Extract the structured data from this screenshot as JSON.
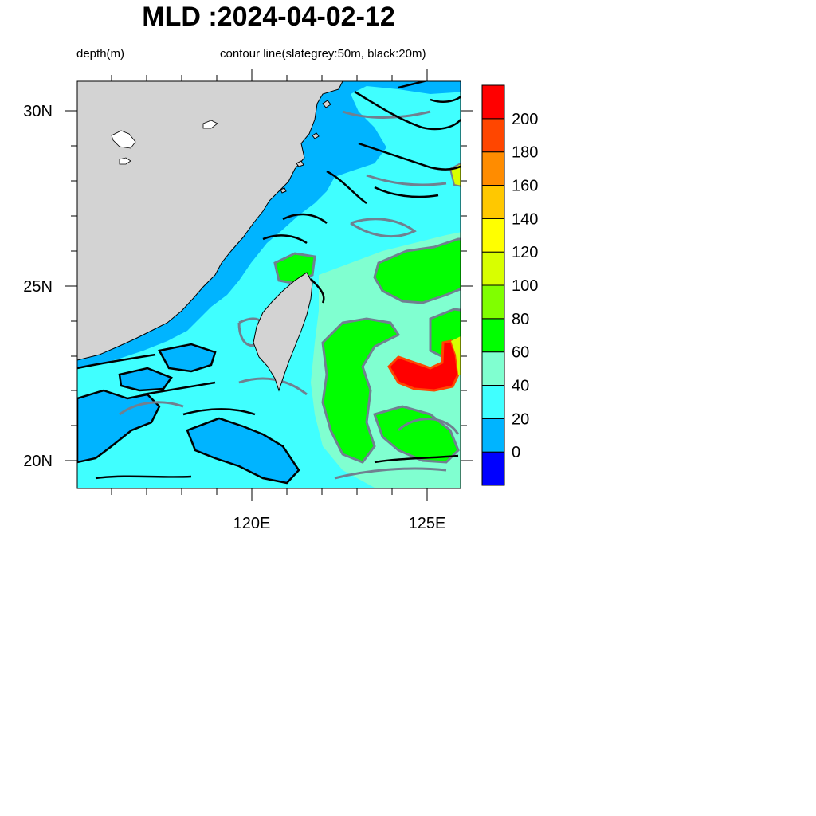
{
  "figure": {
    "title": "MLD :2024-04-02-12",
    "left_string": "depth(m)",
    "right_string": "contour line(slategrey:50m, black:20m)"
  },
  "map": {
    "lon_range": [
      115,
      126
    ],
    "lat_range": [
      19.2,
      30.9
    ],
    "lat_labels": [
      {
        "value": 30,
        "text": "30N"
      },
      {
        "value": 25,
        "text": "25N"
      },
      {
        "value": 20,
        "text": "20N"
      }
    ],
    "lon_labels": [
      {
        "value": 120,
        "text": "120E"
      },
      {
        "value": 125,
        "text": "125E"
      }
    ],
    "land_color": "#d3d3d3",
    "contour_colors": {
      "slategrey": "#708090",
      "black": "#000000"
    }
  },
  "colorbar": {
    "levels": [
      "0",
      "20",
      "40",
      "60",
      "80",
      "100",
      "120",
      "140",
      "160",
      "180",
      "200"
    ],
    "colors": [
      "#0000ff",
      "#00b4ff",
      "#40ffff",
      "#80ffd0",
      "#00ff00",
      "#80ff00",
      "#d8ff00",
      "#ffff00",
      "#ffc800",
      "#ff8c00",
      "#ff4600",
      "#ff0000"
    ]
  }
}
